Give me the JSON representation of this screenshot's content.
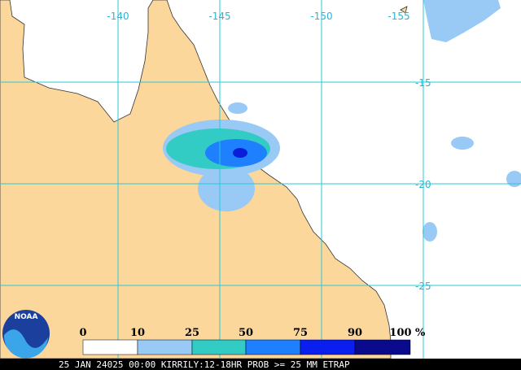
{
  "map": {
    "longitude_labels": [
      "-140",
      "-145",
      "-150",
      "-155"
    ],
    "latitude_labels": [
      "-15",
      "-20",
      "-25"
    ],
    "scale": {
      "labels": [
        "0",
        "10",
        "25",
        "50",
        "75",
        "90",
        "100"
      ],
      "unit": "%"
    },
    "logo": "NOAA",
    "caption": "25 JAN 24025 00:00 KIRRILY:12-18HR PROB >= 25 MM ETRAP"
  }
}
